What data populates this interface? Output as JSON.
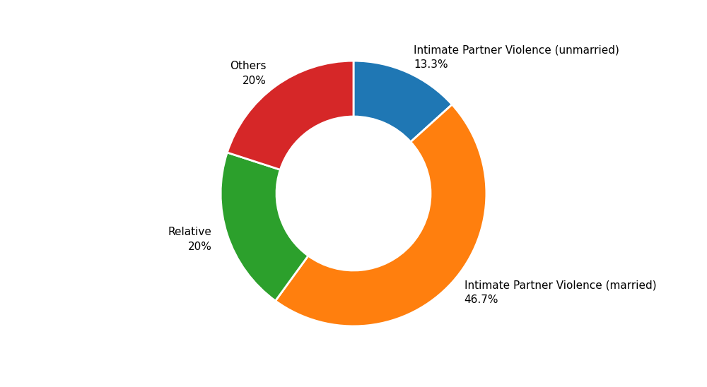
{
  "chart_data": {
    "type": "pie",
    "categories": [
      "Intimate Partner Violence (unmarried)",
      "Intimate Partner Violence (married)",
      "Relative",
      "Others"
    ],
    "values": [
      13.3,
      46.7,
      20.0,
      20.0
    ],
    "value_labels": [
      "13.3%",
      "46.7%",
      "20%",
      "20%"
    ],
    "data_labels": true
  }
}
